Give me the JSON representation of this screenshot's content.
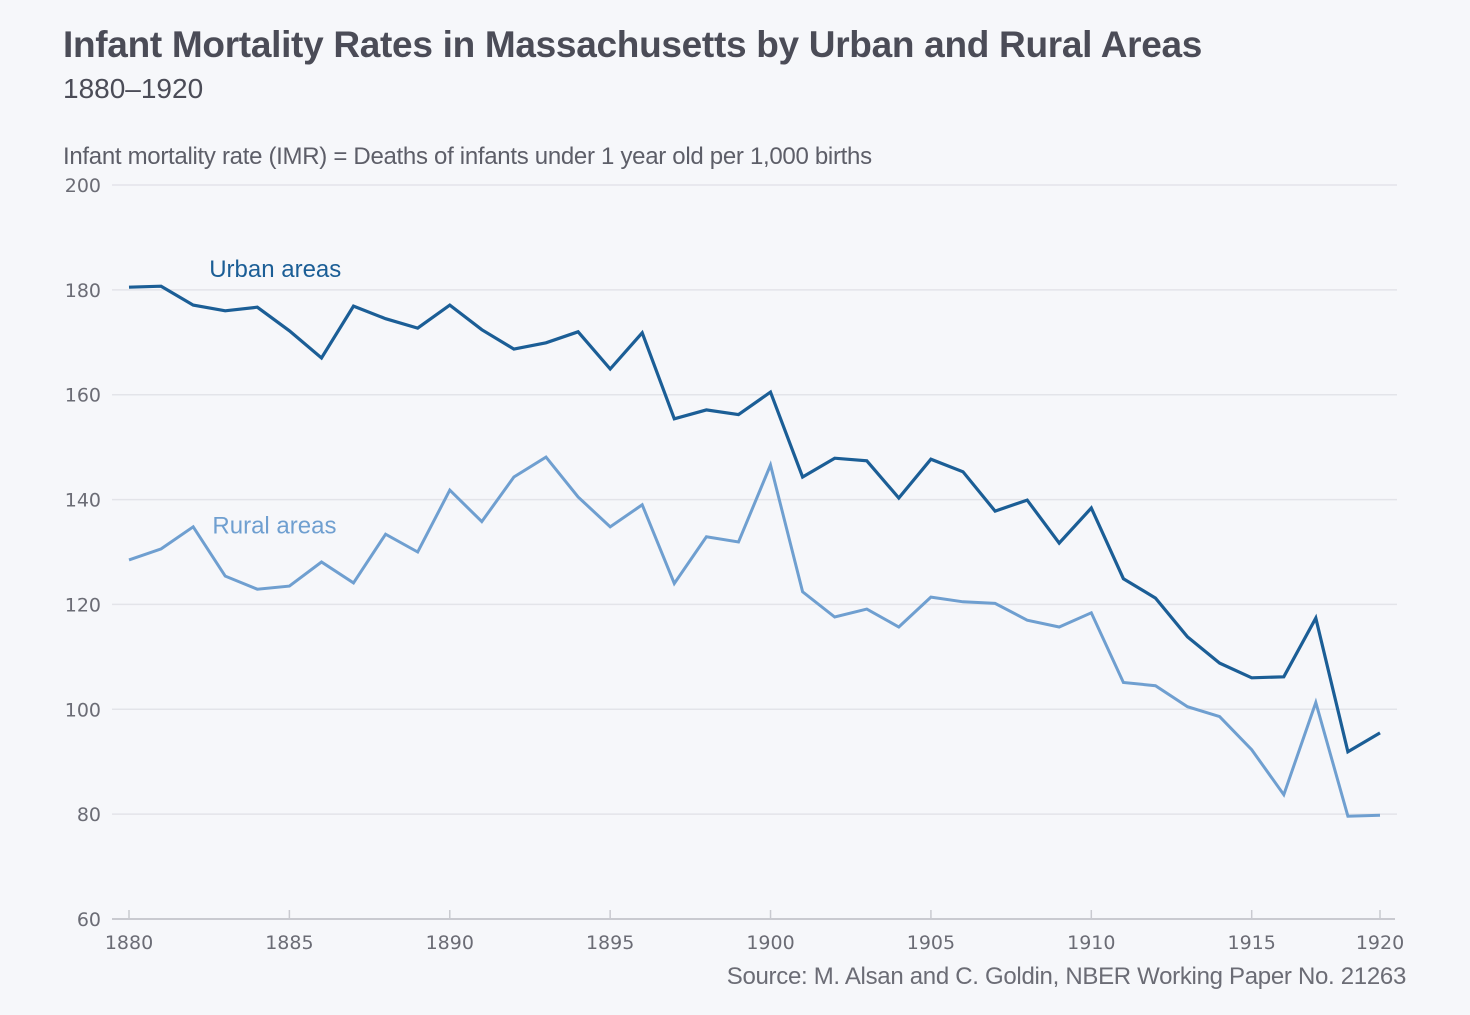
{
  "header": {
    "title": "Infant Mortality Rates in Massachusetts by Urban and Rural Areas",
    "subtitle": "1880–1920",
    "axis_note": "Infant mortality rate (IMR) = Deaths of infants under 1 year old per 1,000 births"
  },
  "footer": {
    "source": "Source: M. Alsan and C. Goldin, NBER Working Paper No. 21263"
  },
  "chart_data": {
    "type": "line",
    "title": "Infant Mortality Rates in Massachusetts by Urban and Rural Areas",
    "subtitle": "1880–1920",
    "xlabel": "",
    "ylabel": "Infant mortality rate (IMR) = Deaths of infants under 1 year old per 1,000 births",
    "xlim": [
      1880,
      1919
    ],
    "ylim": [
      60,
      200
    ],
    "grid": true,
    "legend": "inline labels",
    "x_ticks": [
      {
        "value": 1880,
        "label": "1880"
      },
      {
        "value": 1885,
        "label": "1885"
      },
      {
        "value": 1890,
        "label": "1890"
      },
      {
        "value": 1895,
        "label": "1895"
      },
      {
        "value": 1900,
        "label": "1900"
      },
      {
        "value": 1905,
        "label": "1905"
      },
      {
        "value": 1910,
        "label": "1910"
      },
      {
        "value": 1915,
        "label": "1915"
      },
      {
        "value": 1919,
        "label": "1920"
      }
    ],
    "y_ticks": [
      60,
      80,
      100,
      120,
      140,
      160,
      180,
      200
    ],
    "x": [
      1880,
      1881,
      1882,
      1883,
      1884,
      1885,
      1886,
      1887,
      1888,
      1889,
      1890,
      1891,
      1892,
      1893,
      1894,
      1895,
      1896,
      1897,
      1898,
      1899,
      1900,
      1901,
      1902,
      1903,
      1904,
      1905,
      1906,
      1907,
      1908,
      1909,
      1910,
      1911,
      1912,
      1913,
      1914,
      1915,
      1916,
      1917,
      1918,
      1919
    ],
    "series": [
      {
        "name": "Urban areas",
        "color": "#1b5e96",
        "label_anchor": {
          "x": 1882.5,
          "y": 182.5
        },
        "values": [
          180.5,
          180.7,
          177.1,
          176.0,
          176.7,
          172.2,
          167.0,
          176.9,
          174.5,
          172.7,
          177.1,
          172.4,
          168.7,
          169.9,
          172.0,
          164.9,
          171.8,
          155.4,
          157.1,
          156.2,
          160.5,
          144.3,
          147.9,
          147.4,
          140.3,
          147.7,
          145.3,
          137.8,
          139.9,
          131.7,
          138.4,
          124.9,
          121.2,
          113.8,
          108.8,
          106.0,
          106.2,
          117.4,
          91.9,
          95.5
        ]
      },
      {
        "name": "Rural areas",
        "color": "#6f9fd0",
        "label_anchor": {
          "x": 1882.6,
          "y": 133.5
        },
        "values": [
          128.5,
          130.6,
          134.8,
          125.4,
          122.9,
          123.5,
          128.1,
          124.1,
          133.4,
          130.0,
          141.8,
          135.8,
          144.3,
          148.1,
          140.5,
          134.8,
          139.0,
          124.0,
          132.9,
          131.9,
          146.6,
          122.4,
          117.6,
          119.1,
          115.7,
          121.4,
          120.5,
          120.2,
          117.0,
          115.7,
          118.4,
          105.1,
          104.5,
          100.5,
          98.6,
          92.3,
          83.7,
          101.3,
          79.6,
          79.8
        ]
      }
    ],
    "colors": {
      "gridline": "#e3e4e9",
      "axis": "#c9cad0",
      "tick_text": "#6b6c75"
    }
  }
}
